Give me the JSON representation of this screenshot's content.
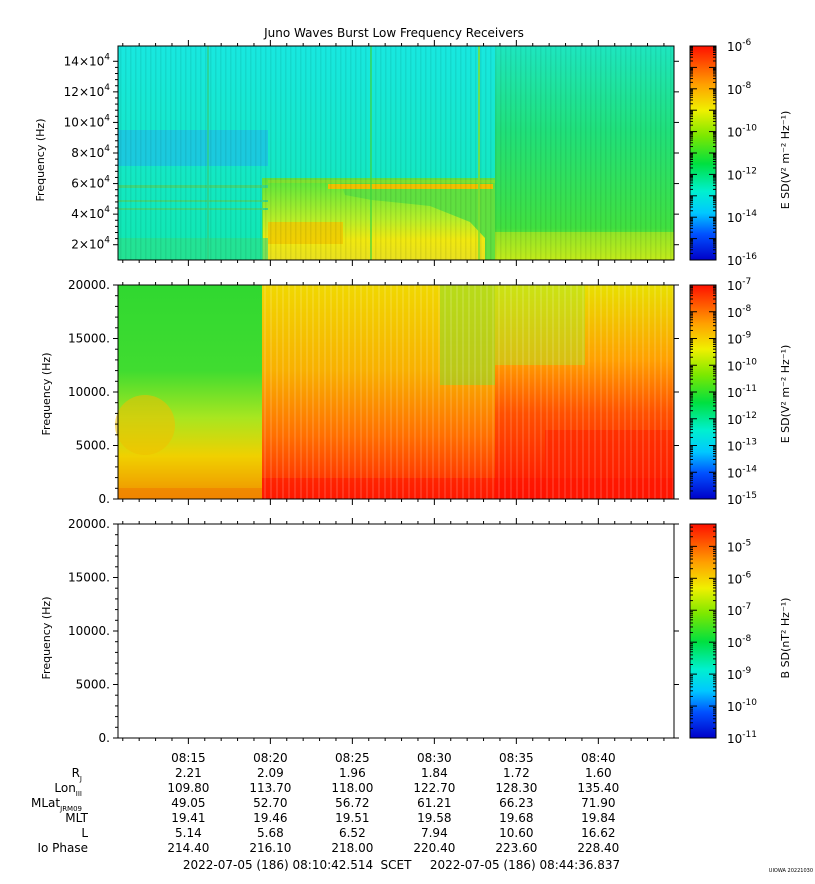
{
  "chart_data": {
    "type": "heatmap",
    "title": "Juno Waves Burst Low Frequency Receivers",
    "panels": [
      {
        "id": "p1",
        "ylabel": "Frequency (Hz)",
        "yticks": [
          {
            "value": 20000,
            "mant": "2",
            "exp": "4"
          },
          {
            "value": 40000,
            "mant": "4",
            "exp": "4"
          },
          {
            "value": 60000,
            "mant": "6",
            "exp": "4"
          },
          {
            "value": 80000,
            "mant": "8",
            "exp": "4"
          },
          {
            "value": 100000,
            "mant": "10",
            "exp": "4"
          },
          {
            "value": 120000,
            "mant": "12",
            "exp": "4"
          },
          {
            "value": 140000,
            "mant": "14",
            "exp": "4"
          }
        ],
        "ylim": [
          10000,
          150000
        ],
        "colorbar_label": "E SD(V² m⁻² Hz⁻¹)",
        "colorbar_range_exp": [
          -16,
          -6
        ],
        "colorbar_ticks": [
          "-6",
          "-8",
          "-10",
          "-12",
          "-14",
          "-16"
        ]
      },
      {
        "id": "p2",
        "ylabel": "Frequency (Hz)",
        "yticks": [
          {
            "value": 0,
            "label": "0."
          },
          {
            "value": 5000,
            "label": "5000."
          },
          {
            "value": 10000,
            "label": "10000."
          },
          {
            "value": 15000,
            "label": "15000."
          },
          {
            "value": 20000,
            "label": "20000."
          }
        ],
        "ylim": [
          0,
          20000
        ],
        "colorbar_label": "E SD(V² m⁻² Hz⁻¹)",
        "colorbar_range_exp": [
          -15,
          -7
        ],
        "colorbar_ticks": [
          "-7",
          "-8",
          "-9",
          "-10",
          "-11",
          "-12",
          "-13",
          "-14",
          "-15"
        ]
      },
      {
        "id": "p3",
        "ylabel": "Frequency (Hz)",
        "yticks": [
          {
            "value": 0,
            "label": "0."
          },
          {
            "value": 5000,
            "label": "5000."
          },
          {
            "value": 10000,
            "label": "10000."
          },
          {
            "value": 15000,
            "label": "15000."
          },
          {
            "value": 20000,
            "label": "20000."
          }
        ],
        "ylim": [
          0,
          20000
        ],
        "colorbar_label": "B SD(nT² Hz⁻¹)",
        "colorbar_range_exp": [
          -11,
          -4.3
        ],
        "colorbar_ticks": [
          "-5",
          "-6",
          "-7",
          "-8",
          "-9",
          "-10",
          "-11"
        ]
      }
    ],
    "x_ticks": [
      "08:15",
      "08:20",
      "08:25",
      "08:30",
      "08:35",
      "08:40"
    ],
    "ephemeris": {
      "rows": [
        {
          "label": "R",
          "sub": "J",
          "values": [
            "2.21",
            "2.09",
            "1.96",
            "1.84",
            "1.72",
            "1.60"
          ]
        },
        {
          "label": "Lon",
          "sub": "III",
          "values": [
            "109.80",
            "113.70",
            "118.00",
            "122.70",
            "128.30",
            "135.40"
          ]
        },
        {
          "label": "MLat",
          "sub": "JRM09",
          "values": [
            "49.05",
            "52.70",
            "56.72",
            "61.21",
            "66.23",
            "71.90"
          ]
        },
        {
          "label": "MLT",
          "sub": "",
          "values": [
            "19.41",
            "19.46",
            "19.51",
            "19.58",
            "19.68",
            "19.84"
          ]
        },
        {
          "label": "L",
          "sub": "",
          "values": [
            "5.14",
            "5.68",
            "6.52",
            "7.94",
            "10.60",
            "16.62"
          ]
        },
        {
          "label": "Io Phase",
          "sub": "",
          "values": [
            "214.40",
            "216.10",
            "218.00",
            "220.40",
            "223.60",
            "228.40"
          ]
        }
      ]
    },
    "time_range": {
      "start": "2022-07-05 (186) 08:10:42.514",
      "middle": "SCET",
      "end": "2022-07-05 (186) 08:44:36.837"
    },
    "footer_tag": "UIOWA 20221030"
  }
}
